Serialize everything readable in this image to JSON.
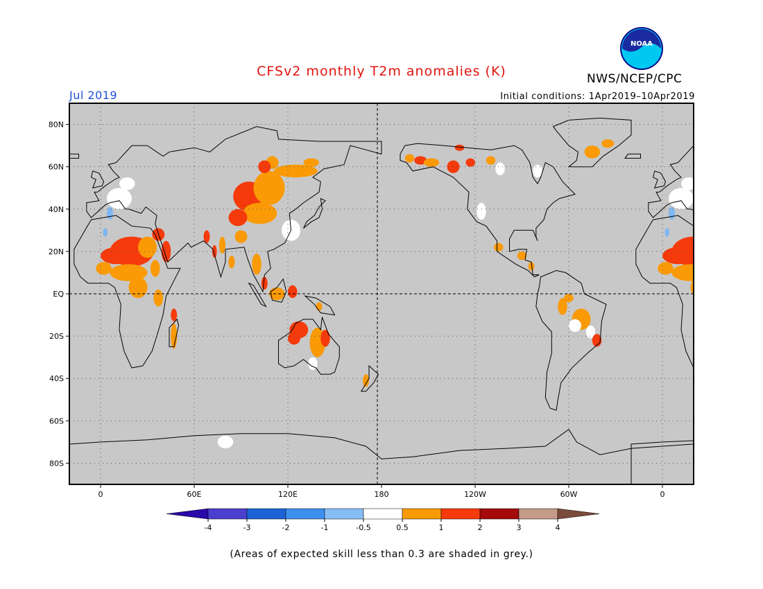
{
  "title": "CFSv2 monthly T2m anomalies (K)",
  "organization": "NWS/NCEP/CPC",
  "logo_text": "NOAA",
  "period": "Jul 2019",
  "initial_conditions": "Initial conditions: 1Apr2019–10Apr2019",
  "note": "(Areas of expected skill less than 0.3 are shaded in grey.)",
  "colors": {
    "grey_mask": "#c8c8c8",
    "title_red": "#e0140f",
    "period_blue": "#1e4fd8"
  },
  "map": {
    "projection": "equirectangular",
    "lon_range": [
      -20,
      380
    ],
    "lat_range": [
      -90,
      90
    ],
    "lat_ticks": [
      {
        "lat": 80,
        "label": "80N"
      },
      {
        "lat": 60,
        "label": "60N"
      },
      {
        "lat": 40,
        "label": "40N"
      },
      {
        "lat": 20,
        "label": "20N"
      },
      {
        "lat": 0,
        "label": "EQ"
      },
      {
        "lat": -20,
        "label": "20S"
      },
      {
        "lat": -40,
        "label": "40S"
      },
      {
        "lat": -60,
        "label": "60S"
      },
      {
        "lat": -80,
        "label": "80S"
      }
    ],
    "lon_ticks": [
      {
        "lon": 0,
        "label": "0"
      },
      {
        "lon": 60,
        "label": "60E"
      },
      {
        "lon": 120,
        "label": "120E"
      },
      {
        "lon": 180,
        "label": "180"
      },
      {
        "lon": 240,
        "label": "120W"
      },
      {
        "lon": 300,
        "label": "60W"
      },
      {
        "lon": 360,
        "label": "0"
      }
    ]
  },
  "colorbar": {
    "labels": [
      "-4",
      "-3",
      "-2",
      "-1",
      "-0.5",
      "0.5",
      "1",
      "2",
      "3",
      "4"
    ],
    "colors": [
      "#2a0aa8",
      "#4b3fd0",
      "#1a62d6",
      "#3d8ff0",
      "#86bdf5",
      "#ffffff",
      "#f99a06",
      "#f53a0c",
      "#a40a0a",
      "#c49a88",
      "#7a4a3a"
    ]
  },
  "anomaly_regions": [
    {
      "name": "Sahara / West Africa",
      "level": "1-2",
      "color": "#f53a0c"
    },
    {
      "name": "Central Asia / Mongolia",
      "level": "1-2",
      "color": "#f53a0c"
    },
    {
      "name": "Siberia",
      "level": "0.5-1",
      "color": "#f99a06"
    },
    {
      "name": "Northern Australia",
      "level": "1-2",
      "color": "#f53a0c"
    },
    {
      "name": "Alaska",
      "level": "1-2",
      "color": "#f53a0c"
    },
    {
      "name": "Brazil",
      "level": "0.5-1",
      "color": "#f99a06"
    },
    {
      "name": "Greenland",
      "level": "0.5-1",
      "color": "#f99a06"
    },
    {
      "name": "Antarctica",
      "level": "-0.5-0.5",
      "color": "#ffffff"
    }
  ]
}
